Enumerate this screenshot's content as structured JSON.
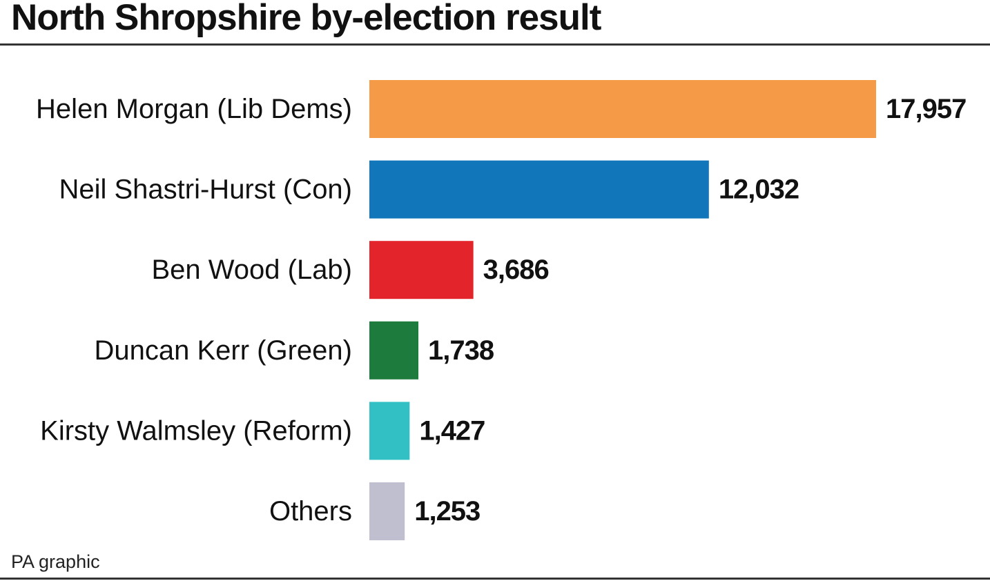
{
  "header": {
    "title": "North Shropshire by-election result"
  },
  "footer": {
    "source": "PA graphic"
  },
  "chart_data": {
    "type": "bar",
    "orientation": "horizontal",
    "title": "North Shropshire by-election result",
    "xlabel": "",
    "ylabel": "",
    "grid": false,
    "legend": "none",
    "xlim": [
      0,
      18000
    ],
    "categories": [
      "Helen Morgan (Lib Dems)",
      "Neil Shastri-Hurst (Con)",
      "Ben Wood (Lab)",
      "Duncan Kerr (Green)",
      "Kirsty Walmsley (Reform)",
      "Others"
    ],
    "values": [
      17957,
      12032,
      3686,
      1738,
      1427,
      1253
    ],
    "value_labels": [
      "17,957",
      "12,032",
      "3,686",
      "1,738",
      "1,427",
      "1,253"
    ],
    "colors": [
      "#F59A46",
      "#1277BA",
      "#E3242B",
      "#1E7B3E",
      "#33C0C4",
      "#C0BFCF"
    ]
  }
}
